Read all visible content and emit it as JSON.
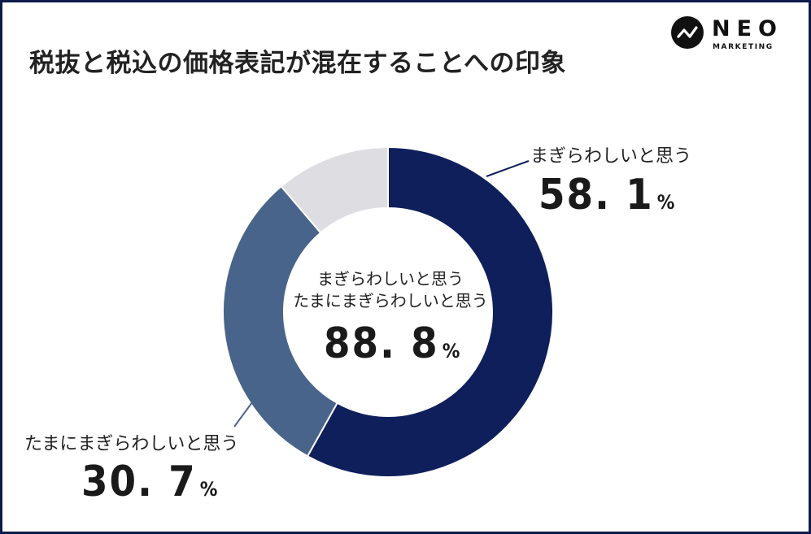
{
  "title": "税抜と税込の価格表記が混在することへの印象",
  "logo": {
    "word": "NEO",
    "sub": "MARKETING",
    "icon": "neo-zigzag-icon"
  },
  "chart_data": {
    "type": "pie",
    "variant": "donut",
    "slices": [
      {
        "label": "まぎらわしいと思う",
        "value": 58.1,
        "display": "58. 1",
        "color": "#0e1f5b"
      },
      {
        "label": "たまにまぎらわしいと思う",
        "value": 30.7,
        "display": "30. 7",
        "color": "#48648a"
      },
      {
        "label": "",
        "value": 11.2,
        "color": "#dedde2"
      }
    ],
    "center": {
      "line1": "まぎらわしいと思う",
      "line2": "たまにまぎらわしいと思う",
      "value": "88. 8"
    },
    "unit": "%"
  }
}
